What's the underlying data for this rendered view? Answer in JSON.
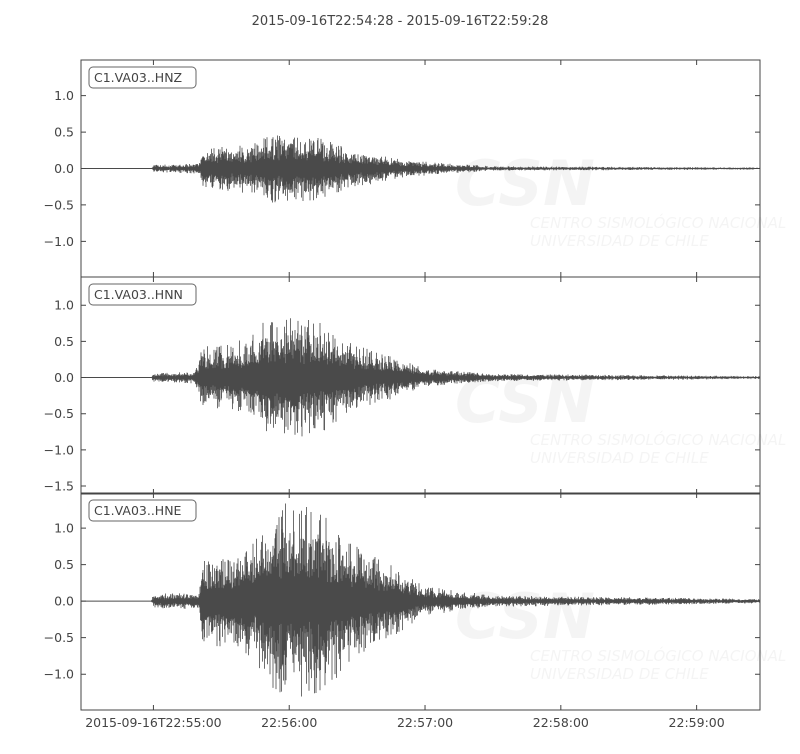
{
  "chart_data": {
    "type": "line",
    "title": "2015-09-16T22:54:28  -  2015-09-16T22:59:28",
    "xlim": [
      "22:54:28",
      "22:59:28"
    ],
    "x_ticks": [
      "2015-09-16T22:55:00",
      "22:56:00",
      "22:57:00",
      "22:58:00",
      "22:59:00"
    ],
    "x_tick_times": [
      "22:55:00",
      "22:56:00",
      "22:57:00",
      "22:58:00",
      "22:59:00"
    ],
    "grid": false,
    "line_color": "#4a4a4a",
    "watermark": {
      "logo": "CSN",
      "line1": "CENTRO SISMOLÓGICO NACIONAL",
      "line2": "UNIVERSIDAD DE CHILE"
    },
    "panels": [
      {
        "name": "C1.VA03..HNZ",
        "ylim": [
          -1.49,
          1.49
        ],
        "y_ticks": [
          "1.0",
          "0.5",
          "0.0",
          "−0.5",
          "−1.0"
        ],
        "y_tick_values": [
          1.0,
          0.5,
          0.0,
          -0.5,
          -1.0
        ],
        "envelope": [
          [
            "22:54:28",
            0
          ],
          [
            "22:54:59",
            0
          ],
          [
            "22:55:00",
            0.05
          ],
          [
            "22:55:20",
            0.07
          ],
          [
            "22:55:22",
            0.28
          ],
          [
            "22:55:45",
            0.35
          ],
          [
            "22:55:52",
            0.47
          ],
          [
            "22:56:10",
            0.45
          ],
          [
            "22:56:25",
            0.3
          ],
          [
            "22:56:45",
            0.15
          ],
          [
            "22:57:05",
            0.08
          ],
          [
            "22:57:30",
            0.03
          ],
          [
            "22:59:28",
            0.015
          ]
        ]
      },
      {
        "name": "C1.VA03..HNN",
        "ylim": [
          -1.61,
          1.39
        ],
        "y_ticks": [
          "1.0",
          "0.5",
          "0.0",
          "−0.5",
          "−1.0",
          "−1.5"
        ],
        "y_tick_values": [
          1.0,
          0.5,
          0.0,
          -0.5,
          -1.0,
          -1.5
        ],
        "envelope": [
          [
            "22:54:28",
            0
          ],
          [
            "22:54:59",
            0
          ],
          [
            "22:55:00",
            0.06
          ],
          [
            "22:55:18",
            0.08
          ],
          [
            "22:55:22",
            0.45
          ],
          [
            "22:55:35",
            0.45
          ],
          [
            "22:55:50",
            0.8
          ],
          [
            "22:56:00",
            0.9
          ],
          [
            "22:56:15",
            0.75
          ],
          [
            "22:56:30",
            0.45
          ],
          [
            "22:56:45",
            0.3
          ],
          [
            "22:57:00",
            0.12
          ],
          [
            "22:57:30",
            0.05
          ],
          [
            "22:59:28",
            0.02
          ]
        ]
      },
      {
        "name": "C1.VA03..HNE",
        "ylim": [
          -1.49,
          1.48
        ],
        "y_ticks": [
          "1.0",
          "0.5",
          "0.0",
          "−0.5",
          "−1.0"
        ],
        "y_tick_values": [
          1.0,
          0.5,
          0.0,
          -0.5,
          -1.0
        ],
        "envelope": [
          [
            "22:54:28",
            0
          ],
          [
            "22:54:59",
            0
          ],
          [
            "22:55:00",
            0.1
          ],
          [
            "22:55:20",
            0.12
          ],
          [
            "22:55:22",
            0.65
          ],
          [
            "22:55:35",
            0.6
          ],
          [
            "22:55:50",
            1.1
          ],
          [
            "22:55:58",
            1.35
          ],
          [
            "22:56:15",
            1.25
          ],
          [
            "22:56:30",
            0.75
          ],
          [
            "22:56:45",
            0.5
          ],
          [
            "22:57:00",
            0.2
          ],
          [
            "22:57:30",
            0.08
          ],
          [
            "22:58:10",
            0.06
          ],
          [
            "22:59:28",
            0.03
          ]
        ]
      }
    ]
  }
}
